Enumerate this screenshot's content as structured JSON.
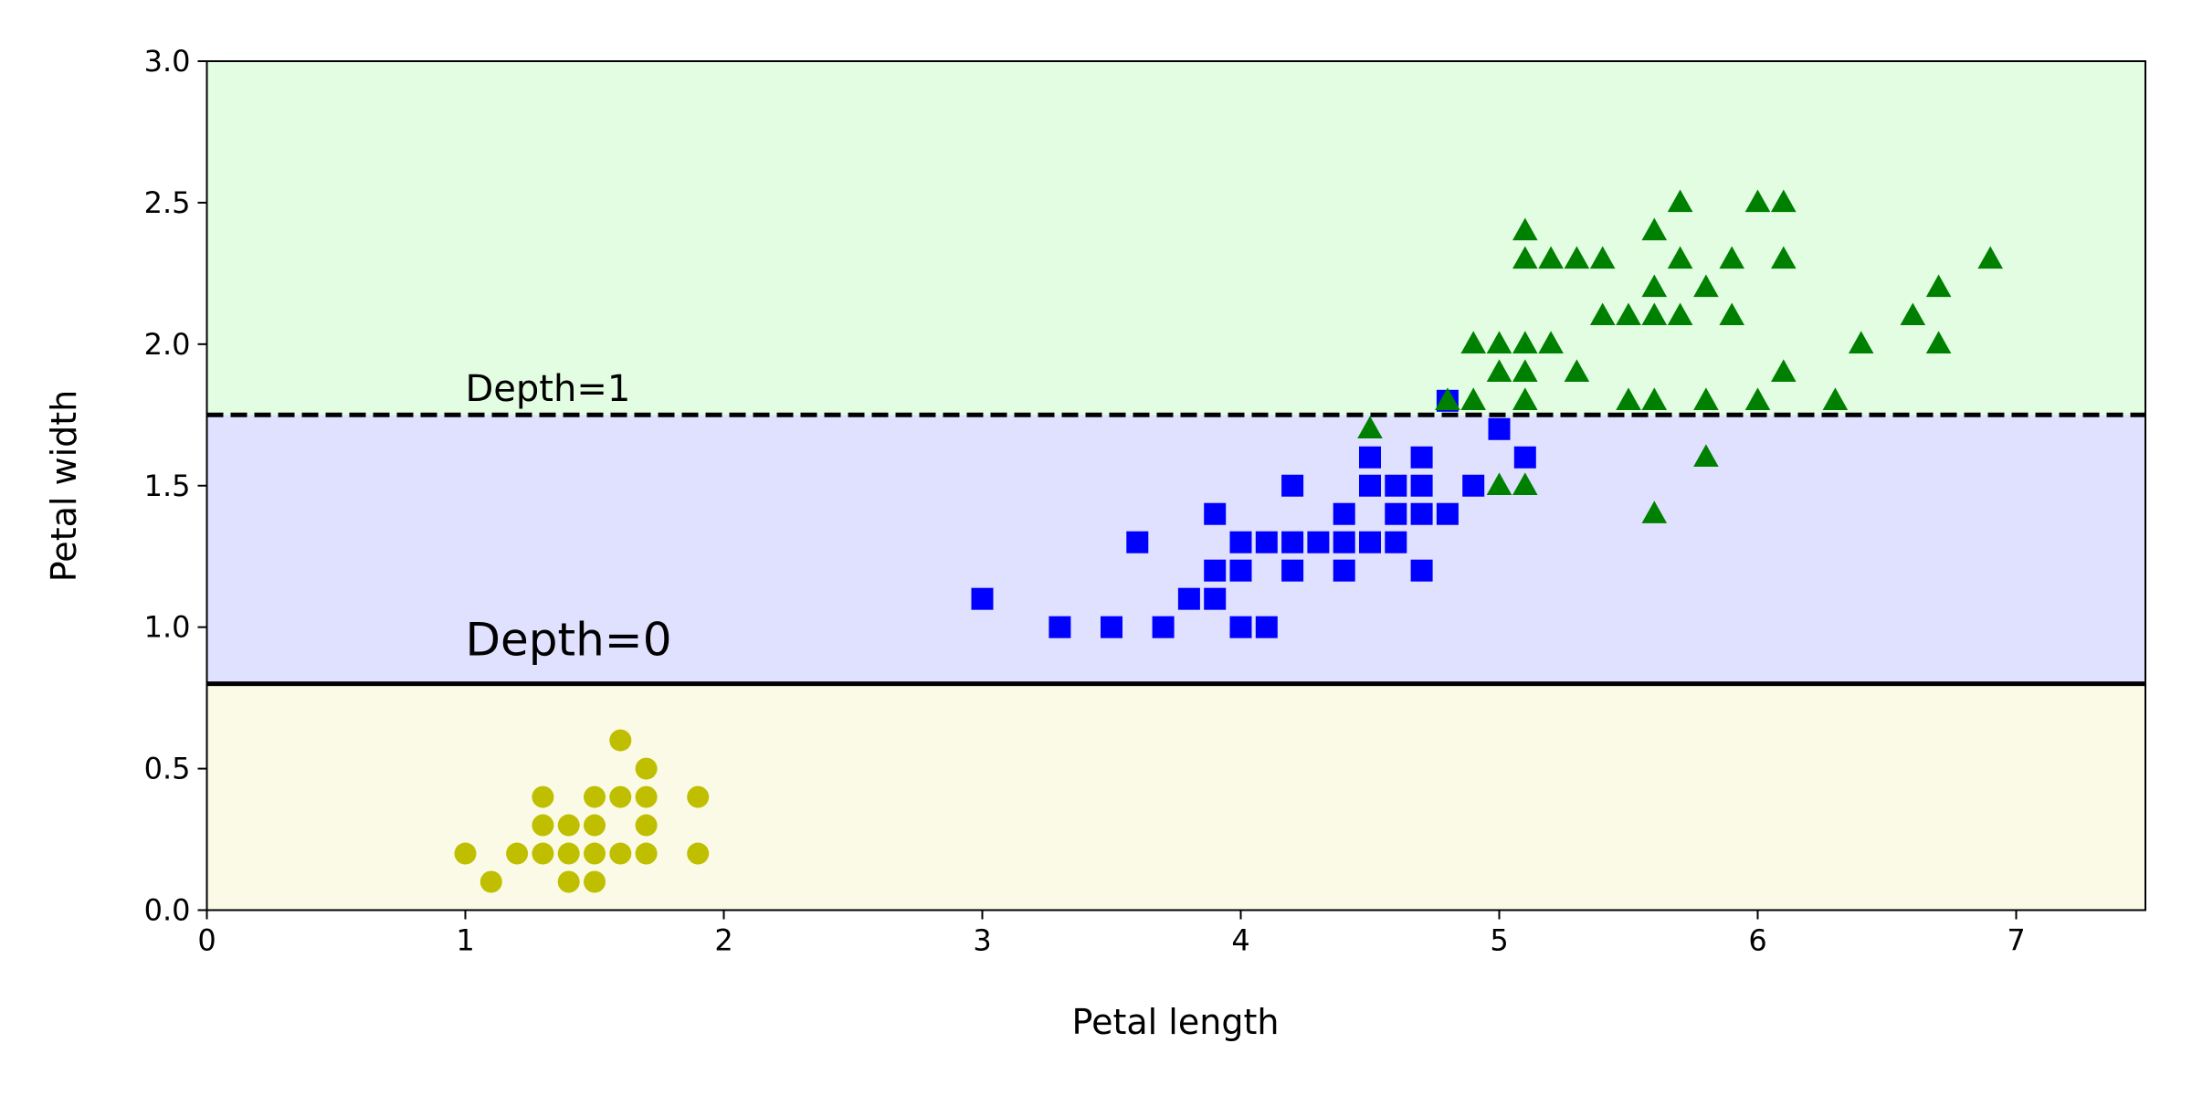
{
  "chart_data": {
    "type": "scatter",
    "title": "",
    "xlabel": "Petal length",
    "ylabel": "Petal width",
    "xlim": [
      0,
      7.5
    ],
    "ylim": [
      0,
      3.0
    ],
    "xticks": [
      "0",
      "1",
      "2",
      "3",
      "4",
      "5",
      "6",
      "7"
    ],
    "yticks": [
      "0.0",
      "0.5",
      "1.0",
      "1.5",
      "2.0",
      "2.5",
      "3.0"
    ],
    "grid": false,
    "regions": [
      {
        "y_from": 0,
        "y_to": 0.8,
        "color": "#fafae7"
      },
      {
        "y_from": 0.8,
        "y_to": 1.75,
        "color": "#e0e0ff"
      },
      {
        "y_from": 1.75,
        "y_to": 3.0,
        "color": "#e2fde2"
      }
    ],
    "boundaries": [
      {
        "y": 0.8,
        "style": "solid",
        "label": "Depth=0",
        "label_x": 1.0,
        "label_y": 0.9
      },
      {
        "y": 1.75,
        "style": "dashed",
        "label": "Depth=1",
        "label_x": 1.0,
        "label_y": 1.8
      }
    ],
    "series": [
      {
        "marker": "circle",
        "color": "#bfbf00",
        "points": [
          [
            1.4,
            0.2
          ],
          [
            1.3,
            0.2
          ],
          [
            1.5,
            0.2
          ],
          [
            1.7,
            0.4
          ],
          [
            1.4,
            0.3
          ],
          [
            1.5,
            0.1
          ],
          [
            1.6,
            0.2
          ],
          [
            1.4,
            0.1
          ],
          [
            1.1,
            0.1
          ],
          [
            1.2,
            0.2
          ],
          [
            1.5,
            0.4
          ],
          [
            1.3,
            0.4
          ],
          [
            1.7,
            0.3
          ],
          [
            1.5,
            0.3
          ],
          [
            1.7,
            0.2
          ],
          [
            1.0,
            0.2
          ],
          [
            1.7,
            0.5
          ],
          [
            1.9,
            0.2
          ],
          [
            1.6,
            0.4
          ],
          [
            1.3,
            0.3
          ],
          [
            1.6,
            0.6
          ],
          [
            1.9,
            0.4
          ]
        ]
      },
      {
        "marker": "square",
        "color": "#0000ff",
        "points": [
          [
            4.7,
            1.4
          ],
          [
            4.5,
            1.5
          ],
          [
            4.9,
            1.5
          ],
          [
            4.0,
            1.3
          ],
          [
            4.6,
            1.5
          ],
          [
            4.5,
            1.3
          ],
          [
            4.7,
            1.6
          ],
          [
            3.3,
            1.0
          ],
          [
            4.6,
            1.3
          ],
          [
            3.9,
            1.4
          ],
          [
            3.5,
            1.0
          ],
          [
            4.2,
            1.5
          ],
          [
            4.0,
            1.0
          ],
          [
            3.6,
            1.3
          ],
          [
            4.4,
            1.4
          ],
          [
            4.1,
            1.0
          ],
          [
            3.9,
            1.1
          ],
          [
            4.8,
            1.8
          ],
          [
            4.7,
            1.2
          ],
          [
            4.3,
            1.3
          ],
          [
            4.8,
            1.4
          ],
          [
            5.0,
            1.7
          ],
          [
            3.8,
            1.1
          ],
          [
            3.7,
            1.0
          ],
          [
            3.9,
            1.2
          ],
          [
            5.1,
            1.6
          ],
          [
            4.5,
            1.6
          ],
          [
            4.7,
            1.5
          ],
          [
            4.4,
            1.3
          ],
          [
            4.1,
            1.3
          ],
          [
            4.4,
            1.2
          ],
          [
            4.6,
            1.4
          ],
          [
            4.0,
            1.2
          ],
          [
            4.2,
            1.3
          ],
          [
            4.2,
            1.2
          ],
          [
            3.0,
            1.1
          ]
        ]
      },
      {
        "marker": "triangle",
        "color": "#008000",
        "points": [
          [
            6.0,
            2.5
          ],
          [
            5.1,
            1.9
          ],
          [
            5.9,
            2.1
          ],
          [
            5.6,
            1.8
          ],
          [
            5.8,
            2.2
          ],
          [
            6.6,
            2.1
          ],
          [
            4.5,
            1.7
          ],
          [
            6.3,
            1.8
          ],
          [
            5.8,
            1.8
          ],
          [
            6.1,
            2.5
          ],
          [
            5.1,
            2.0
          ],
          [
            5.3,
            1.9
          ],
          [
            5.5,
            2.1
          ],
          [
            5.0,
            2.0
          ],
          [
            5.1,
            2.4
          ],
          [
            5.3,
            2.3
          ],
          [
            5.5,
            1.8
          ],
          [
            6.7,
            2.2
          ],
          [
            6.9,
            2.3
          ],
          [
            5.0,
            1.5
          ],
          [
            5.7,
            2.3
          ],
          [
            4.9,
            2.0
          ],
          [
            6.7,
            2.0
          ],
          [
            4.9,
            1.8
          ],
          [
            5.7,
            2.1
          ],
          [
            6.0,
            1.8
          ],
          [
            4.8,
            1.8
          ],
          [
            5.6,
            2.1
          ],
          [
            5.8,
            1.6
          ],
          [
            6.1,
            1.9
          ],
          [
            6.4,
            2.0
          ],
          [
            5.6,
            2.2
          ],
          [
            5.1,
            1.5
          ],
          [
            5.6,
            1.4
          ],
          [
            6.1,
            2.3
          ],
          [
            5.6,
            2.4
          ],
          [
            5.4,
            2.1
          ],
          [
            5.1,
            2.3
          ],
          [
            5.9,
            2.3
          ],
          [
            5.7,
            2.5
          ],
          [
            5.2,
            2.3
          ],
          [
            5.0,
            1.9
          ],
          [
            5.2,
            2.0
          ],
          [
            5.4,
            2.3
          ],
          [
            5.1,
            1.8
          ]
        ]
      }
    ]
  }
}
